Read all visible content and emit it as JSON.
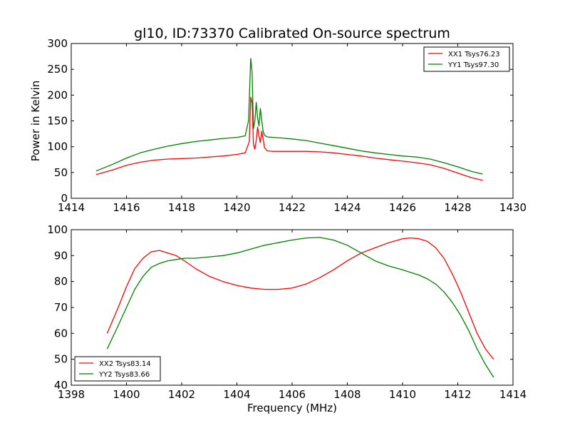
{
  "title": "gl10, ID:73370 Calibrated On-source spectrum",
  "chart_data": [
    {
      "type": "line",
      "title": "gl10, ID:73370 Calibrated On-source spectrum",
      "xlabel": "",
      "ylabel": "Power in Kelvin",
      "xlim": [
        1414,
        1430
      ],
      "ylim": [
        0,
        300
      ],
      "xticks": [
        1414,
        1416,
        1418,
        1420,
        1422,
        1424,
        1426,
        1428,
        1430
      ],
      "yticks": [
        0,
        50,
        100,
        150,
        200,
        250,
        300
      ],
      "grid": false,
      "legend_position": "top-right",
      "series": [
        {
          "name": "XX1 Tsys76.23",
          "color": "#ff0000",
          "x": [
            1414.9,
            1415.5,
            1416,
            1416.5,
            1417,
            1417.5,
            1418,
            1418.5,
            1419,
            1419.5,
            1420,
            1420.3,
            1420.45,
            1420.5,
            1420.55,
            1420.6,
            1420.65,
            1420.7,
            1420.75,
            1420.8,
            1420.85,
            1420.9,
            1420.95,
            1421.0,
            1421.1,
            1421.3,
            1421.6,
            1422,
            1422.5,
            1423,
            1423.5,
            1424,
            1424.5,
            1425,
            1425.5,
            1426,
            1426.5,
            1427,
            1427.5,
            1428,
            1428.5,
            1428.9
          ],
          "y": [
            46,
            55,
            64,
            70,
            74,
            76,
            77,
            78,
            80,
            82,
            85,
            88,
            110,
            196,
            185,
            105,
            95,
            112,
            138,
            120,
            108,
            130,
            115,
            98,
            92,
            91,
            91,
            91,
            91,
            90,
            88,
            85,
            82,
            78,
            75,
            72,
            69,
            65,
            58,
            49,
            40,
            35
          ]
        },
        {
          "name": "YY1 Tsys97.30",
          "color": "#008000",
          "x": [
            1414.9,
            1415.5,
            1416,
            1416.5,
            1417,
            1417.5,
            1418,
            1418.5,
            1419,
            1419.5,
            1420,
            1420.3,
            1420.42,
            1420.5,
            1420.55,
            1420.6,
            1420.65,
            1420.7,
            1420.75,
            1420.8,
            1420.85,
            1420.9,
            1420.95,
            1421.0,
            1421.1,
            1421.3,
            1421.6,
            1422,
            1422.5,
            1423,
            1423.5,
            1424,
            1424.5,
            1425,
            1425.5,
            1426,
            1426.5,
            1427,
            1427.5,
            1428,
            1428.5,
            1428.9
          ],
          "y": [
            53,
            66,
            78,
            88,
            95,
            101,
            106,
            110,
            113,
            116,
            118,
            121,
            150,
            271,
            245,
            135,
            150,
            186,
            155,
            140,
            174,
            150,
            130,
            122,
            119,
            118,
            117,
            115,
            112,
            107,
            102,
            97,
            92,
            88,
            85,
            82,
            80,
            76,
            69,
            61,
            52,
            47
          ]
        }
      ]
    },
    {
      "type": "line",
      "title": "",
      "xlabel": "Frequency (MHz)",
      "ylabel": "",
      "xlim": [
        1398,
        1414
      ],
      "ylim": [
        40,
        100
      ],
      "xticks": [
        1398,
        1400,
        1402,
        1404,
        1406,
        1408,
        1410,
        1412,
        1414
      ],
      "yticks": [
        40,
        50,
        60,
        70,
        80,
        90,
        100
      ],
      "grid": false,
      "legend_position": "bottom-left",
      "series": [
        {
          "name": "XX2 Tsys83.14",
          "color": "#ff0000",
          "x": [
            1399.3,
            1399.7,
            1400.0,
            1400.3,
            1400.6,
            1400.9,
            1401.2,
            1401.5,
            1401.8,
            1402.1,
            1402.5,
            1403.0,
            1403.5,
            1404.0,
            1404.5,
            1405.0,
            1405.5,
            1406.0,
            1406.5,
            1407.0,
            1407.5,
            1408.0,
            1408.5,
            1409.0,
            1409.5,
            1410.0,
            1410.3,
            1410.6,
            1410.9,
            1411.2,
            1411.5,
            1411.8,
            1412.1,
            1412.4,
            1412.7,
            1413.0,
            1413.3
          ],
          "y": [
            60,
            70,
            78,
            85,
            89,
            91.5,
            92,
            91,
            90,
            88,
            85,
            82,
            80,
            78.5,
            77.5,
            77,
            77,
            77.5,
            79,
            81.5,
            84.5,
            88,
            91,
            93,
            95,
            96.5,
            96.8,
            96.5,
            95.5,
            93,
            89,
            83,
            76,
            68,
            60,
            54,
            50
          ]
        },
        {
          "name": "YY2 Tsys83.66",
          "color": "#008000",
          "x": [
            1399.3,
            1399.7,
            1400.0,
            1400.3,
            1400.6,
            1400.9,
            1401.2,
            1401.5,
            1401.8,
            1402.1,
            1402.5,
            1403.0,
            1403.5,
            1404.0,
            1404.5,
            1405.0,
            1405.5,
            1406.0,
            1406.5,
            1407.0,
            1407.5,
            1408.0,
            1408.5,
            1409.0,
            1409.5,
            1410.0,
            1410.3,
            1410.6,
            1410.9,
            1411.2,
            1411.5,
            1411.8,
            1412.1,
            1412.4,
            1412.7,
            1413.0,
            1413.3
          ],
          "y": [
            54,
            63,
            70,
            77,
            82,
            85.5,
            87,
            88,
            88.5,
            89,
            89,
            89.5,
            90,
            91,
            92.5,
            94,
            95,
            96,
            96.8,
            97,
            96,
            94,
            91,
            88,
            86,
            84.5,
            83.5,
            82.5,
            81,
            79,
            76,
            72,
            67,
            61,
            54,
            48,
            43
          ]
        }
      ]
    }
  ]
}
